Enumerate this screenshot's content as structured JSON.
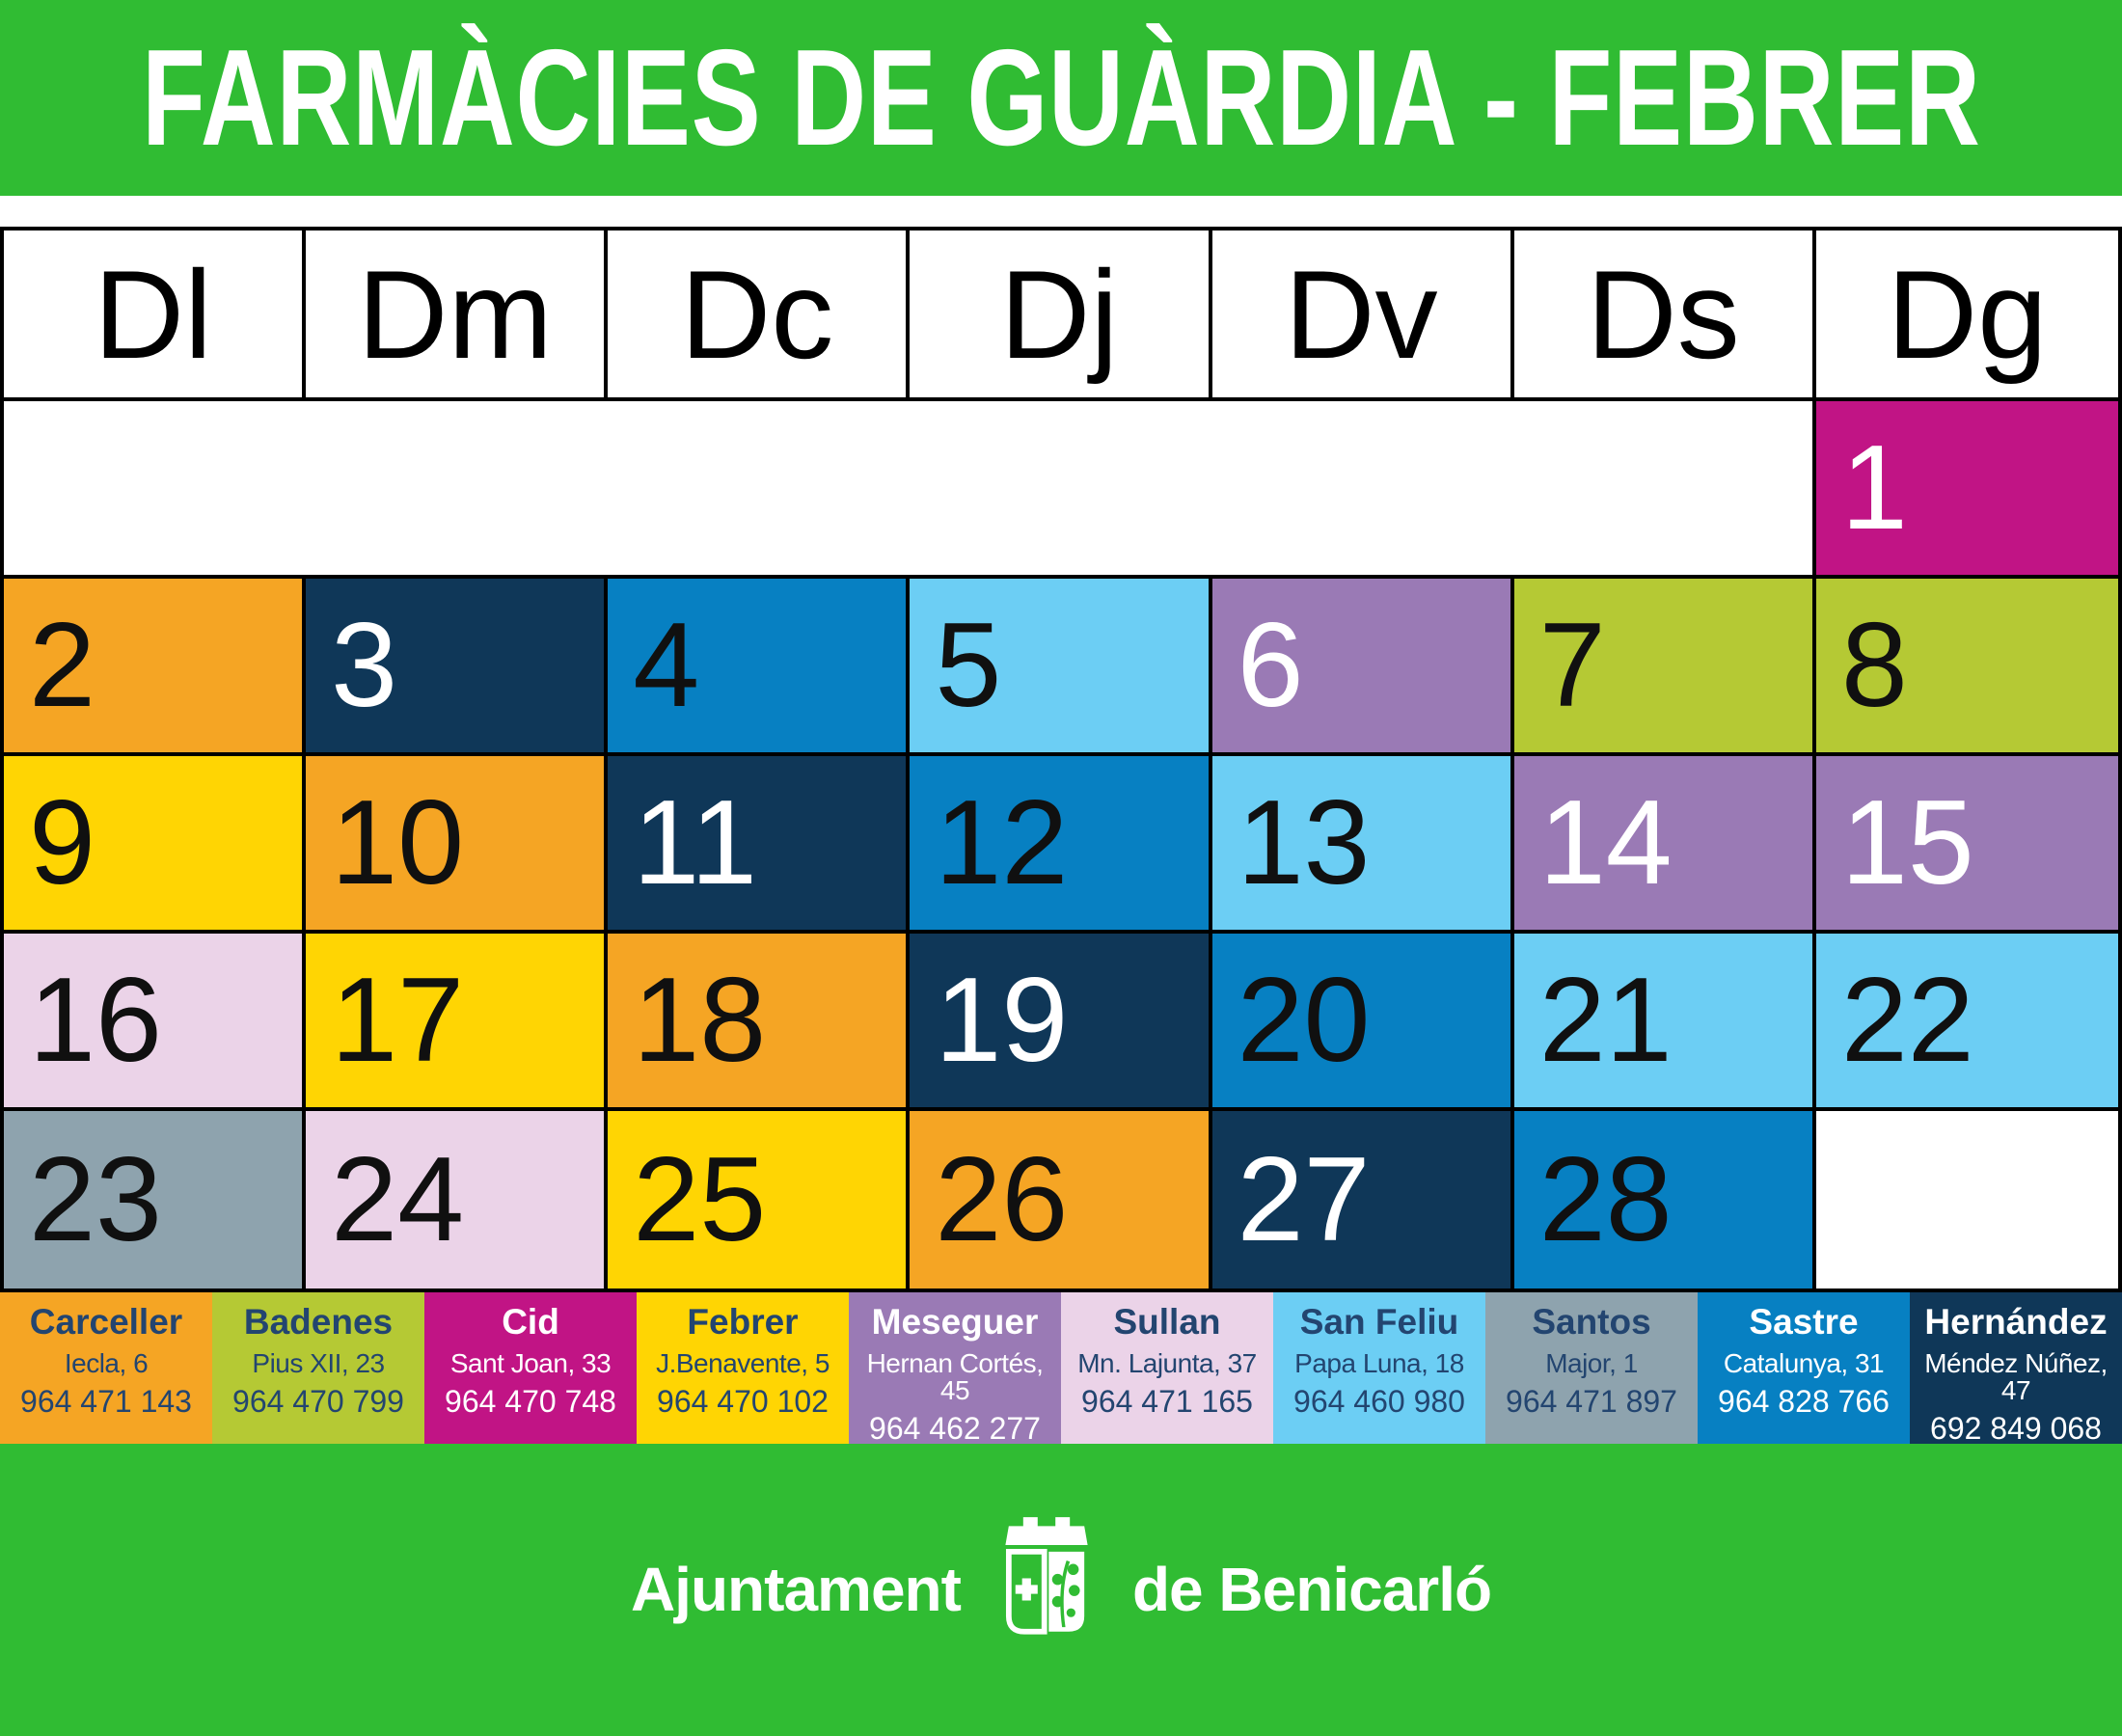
{
  "title": "FARMÀCIES DE GUÀRDIA - FEBRER",
  "month": "FEBRER",
  "weekdays": [
    "Dl",
    "Dm",
    "Dc",
    "Dj",
    "Dv",
    "Ds",
    "Dg"
  ],
  "colors": {
    "green": "#30BC33",
    "table_border": "#000000",
    "white": "#FFFFFF"
  },
  "days": [
    {
      "day": "1",
      "pharmacy": "Cid",
      "bg": "#C11485",
      "fg": "#FFFFFF"
    },
    {
      "day": "2",
      "pharmacy": "Carceller",
      "bg": "#F5A524",
      "fg": "#101010"
    },
    {
      "day": "3",
      "pharmacy": "Hernández",
      "bg": "#0F3758",
      "fg": "#FFFFFF"
    },
    {
      "day": "4",
      "pharmacy": "Sastre",
      "bg": "#0780C2",
      "fg": "#101010"
    },
    {
      "day": "5",
      "pharmacy": "San Feliu",
      "bg": "#6CCEF4",
      "fg": "#101010"
    },
    {
      "day": "6",
      "pharmacy": "Meseguer",
      "bg": "#9A7AB5",
      "fg": "#FFFFFF"
    },
    {
      "day": "7",
      "pharmacy": "Badenes",
      "bg": "#B5C934",
      "fg": "#101010"
    },
    {
      "day": "8",
      "pharmacy": "Badenes",
      "bg": "#B5C934",
      "fg": "#101010"
    },
    {
      "day": "9",
      "pharmacy": "Febrer",
      "bg": "#FFD503",
      "fg": "#101010"
    },
    {
      "day": "10",
      "pharmacy": "Carceller",
      "bg": "#F5A524",
      "fg": "#101010"
    },
    {
      "day": "11",
      "pharmacy": "Hernández",
      "bg": "#0F3758",
      "fg": "#FFFFFF"
    },
    {
      "day": "12",
      "pharmacy": "Sastre",
      "bg": "#0780C2",
      "fg": "#101010"
    },
    {
      "day": "13",
      "pharmacy": "San Feliu",
      "bg": "#6CCEF4",
      "fg": "#101010"
    },
    {
      "day": "14",
      "pharmacy": "Meseguer",
      "bg": "#9A7AB5",
      "fg": "#FFFFFF"
    },
    {
      "day": "15",
      "pharmacy": "Meseguer",
      "bg": "#9A7AB5",
      "fg": "#FFFFFF"
    },
    {
      "day": "16",
      "pharmacy": "Sullan",
      "bg": "#EBD3E8",
      "fg": "#101010"
    },
    {
      "day": "17",
      "pharmacy": "Febrer",
      "bg": "#FFD503",
      "fg": "#101010"
    },
    {
      "day": "18",
      "pharmacy": "Carceller",
      "bg": "#F5A524",
      "fg": "#101010"
    },
    {
      "day": "19",
      "pharmacy": "Hernández",
      "bg": "#0F3758",
      "fg": "#FFFFFF"
    },
    {
      "day": "20",
      "pharmacy": "Sastre",
      "bg": "#0780C2",
      "fg": "#101010"
    },
    {
      "day": "21",
      "pharmacy": "San Feliu",
      "bg": "#6CCEF4",
      "fg": "#101010"
    },
    {
      "day": "22",
      "pharmacy": "San Feliu",
      "bg": "#6CCEF4",
      "fg": "#101010"
    },
    {
      "day": "23",
      "pharmacy": "Santos",
      "bg": "#8EA3AE",
      "fg": "#101010"
    },
    {
      "day": "24",
      "pharmacy": "Sullan",
      "bg": "#EBD3E8",
      "fg": "#101010"
    },
    {
      "day": "25",
      "pharmacy": "Febrer",
      "bg": "#FFD503",
      "fg": "#101010"
    },
    {
      "day": "26",
      "pharmacy": "Carceller",
      "bg": "#F5A524",
      "fg": "#101010"
    },
    {
      "day": "27",
      "pharmacy": "Hernández",
      "bg": "#0F3758",
      "fg": "#FFFFFF"
    },
    {
      "day": "28",
      "pharmacy": "Sastre",
      "bg": "#0780C2",
      "fg": "#101010"
    }
  ],
  "legend": [
    {
      "name": "Carceller",
      "address": "Iecla, 6",
      "phone": "964 471 143",
      "bg": "#F5A524",
      "fg": "#234570"
    },
    {
      "name": "Badenes",
      "address": "Pius XII, 23",
      "phone": "964 470 799",
      "bg": "#B5C934",
      "fg": "#234570"
    },
    {
      "name": "Cid",
      "address": "Sant Joan, 33",
      "phone": "964 470 748",
      "bg": "#C11485",
      "fg": "#FFFFFF"
    },
    {
      "name": "Febrer",
      "address": "J.Benavente, 5",
      "phone": "964 470 102",
      "bg": "#FFD503",
      "fg": "#234570"
    },
    {
      "name": "Meseguer",
      "address": "Hernan Cortés, 45",
      "phone": "964 462 277",
      "bg": "#9A7AB5",
      "fg": "#FFFFFF"
    },
    {
      "name": "Sullan",
      "address": "Mn. Lajunta, 37",
      "phone": "964 471 165",
      "bg": "#EBD3E8",
      "fg": "#234570"
    },
    {
      "name": "San Feliu",
      "address": "Papa Luna, 18",
      "phone": "964 460 980",
      "bg": "#6CCEF4",
      "fg": "#234570"
    },
    {
      "name": "Santos",
      "address": "Major, 1",
      "phone": "964 471 897",
      "bg": "#8EA3AE",
      "fg": "#234570"
    },
    {
      "name": "Sastre",
      "address": "Catalunya, 31",
      "phone": "964 828 766",
      "bg": "#0780C2",
      "fg": "#FFFFFF"
    },
    {
      "name": "Hernández",
      "address": "Méndez Núñez, 47",
      "phone": "692 849 068",
      "bg": "#0F3758",
      "fg": "#FFFFFF"
    }
  ],
  "footer": {
    "org_left": "Ajuntament",
    "org_right": "de Benicarló"
  }
}
